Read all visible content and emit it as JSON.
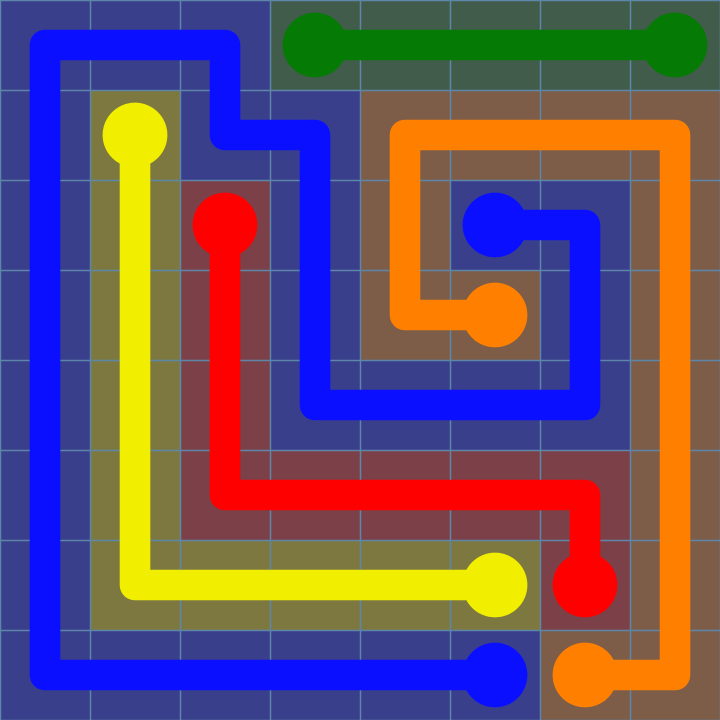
{
  "puzzle": {
    "grid_size": 8,
    "background_color": "#3f4488",
    "grid_line_color": "#5d86a8",
    "flows": [
      {
        "name": "blue",
        "color": "#0a10ff",
        "tint": "#3a3f8c",
        "path": [
          [
            7,
            5
          ],
          [
            7,
            4
          ],
          [
            7,
            3
          ],
          [
            7,
            2
          ],
          [
            7,
            1
          ],
          [
            7,
            0
          ],
          [
            6,
            0
          ],
          [
            5,
            0
          ],
          [
            4,
            0
          ],
          [
            3,
            0
          ],
          [
            2,
            0
          ],
          [
            1,
            0
          ],
          [
            0,
            0
          ],
          [
            0,
            1
          ],
          [
            0,
            2
          ],
          [
            1,
            2
          ],
          [
            1,
            3
          ],
          [
            2,
            3
          ],
          [
            3,
            3
          ],
          [
            4,
            3
          ],
          [
            4,
            4
          ],
          [
            4,
            5
          ],
          [
            4,
            6
          ],
          [
            3,
            6
          ],
          [
            2,
            6
          ],
          [
            2,
            5
          ]
        ]
      },
      {
        "name": "green",
        "color": "#057a05",
        "tint": "#415c4a",
        "path": [
          [
            0,
            3
          ],
          [
            0,
            4
          ],
          [
            0,
            5
          ],
          [
            0,
            6
          ],
          [
            0,
            7
          ]
        ]
      },
      {
        "name": "orange",
        "color": "#ff8000",
        "tint": "#7d5c48",
        "path": [
          [
            3,
            5
          ],
          [
            3,
            4
          ],
          [
            2,
            4
          ],
          [
            1,
            4
          ],
          [
            1,
            5
          ],
          [
            1,
            6
          ],
          [
            1,
            7
          ],
          [
            2,
            7
          ],
          [
            3,
            7
          ],
          [
            4,
            7
          ],
          [
            5,
            7
          ],
          [
            6,
            7
          ],
          [
            7,
            7
          ],
          [
            7,
            6
          ]
        ]
      },
      {
        "name": "yellow",
        "color": "#f2ee00",
        "tint": "#7c7840",
        "path": [
          [
            1,
            1
          ],
          [
            2,
            1
          ],
          [
            3,
            1
          ],
          [
            4,
            1
          ],
          [
            5,
            1
          ],
          [
            6,
            1
          ],
          [
            6,
            2
          ],
          [
            6,
            3
          ],
          [
            6,
            4
          ],
          [
            6,
            5
          ]
        ]
      },
      {
        "name": "red",
        "color": "#ff0000",
        "tint": "#7c4048",
        "path": [
          [
            2,
            2
          ],
          [
            3,
            2
          ],
          [
            4,
            2
          ],
          [
            5,
            2
          ],
          [
            5,
            3
          ],
          [
            5,
            4
          ],
          [
            5,
            5
          ],
          [
            5,
            6
          ],
          [
            6,
            6
          ]
        ]
      }
    ]
  }
}
